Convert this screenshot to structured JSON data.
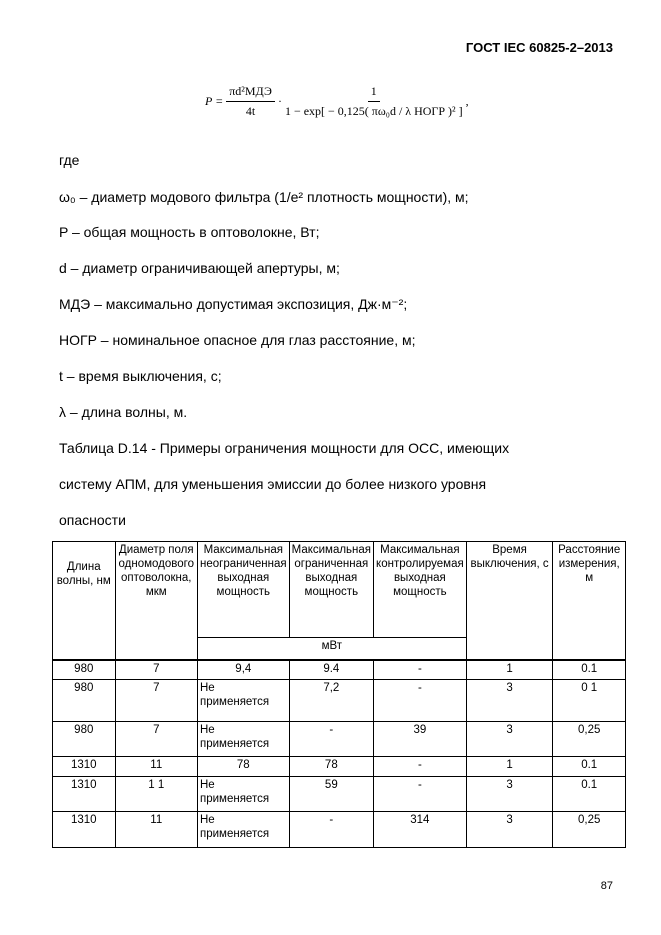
{
  "header": "ГОСТ IEC 60825-2–2013",
  "formula": {
    "lhs": "P =",
    "num1": "πd²МДЭ",
    "den1": "4t",
    "num2": "1",
    "den2": "1 − exp[ − 0,125( πω₀d / λ НОГР )² ]",
    "tail": ","
  },
  "where": "где",
  "defs": [
    "ω₀ – диаметр модового фильтра (1/e² плотность мощности), м;",
    "P – общая мощность в оптоволокне, Вт;",
    "d – диаметр ограничивающей апертуры, м;",
    "МДЭ – максимально допустимая экспозиция, Дж·м⁻²;",
    "НОГР – номинальное опасное для глаз расстояние, м;",
    "t – время выключения, с;",
    "λ – длина волны, м."
  ],
  "caption": [
    "Таблица D.14 - Примеры ограничения мощности  для ОСС, имеющих",
    "систему АПМ, для уменьшения эмиссии до более низкого уровня",
    "опасности"
  ],
  "table": {
    "headers": [
      "Длина волны, нм",
      "Диаметр поля одномодового оптоволокна, мкм",
      "Максимальная неограниченная выходная мощность",
      "Максимальная ограниченная выходная мощность",
      "Максимальная контролируемая выходная мощность",
      "Время выключения, с",
      "Расстояние измерения, м"
    ],
    "unit": "мВт",
    "rows": [
      [
        "980",
        "7",
        "9,4",
        "9.4",
        "-",
        "1",
        "0.1"
      ],
      [
        "980",
        "7",
        "Не применяется",
        "7,2",
        "-",
        "3",
        "0 1"
      ],
      [
        "980",
        "7",
        "Не применяется",
        "-",
        "39",
        "3",
        "0,25"
      ],
      [
        "1310",
        "11",
        "78",
        "78",
        "-",
        "1",
        "0.1"
      ],
      [
        "1310",
        "1 1",
        "Не применяется",
        "59",
        "-",
        "3",
        "0.1"
      ],
      [
        "1310",
        "11",
        "Не применяется",
        "-",
        "314",
        "3",
        "0,25"
      ]
    ]
  },
  "page_number": "87"
}
